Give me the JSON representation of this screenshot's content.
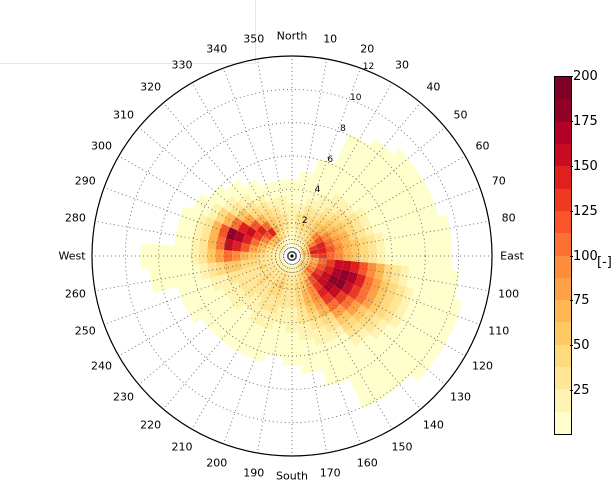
{
  "chart_data": {
    "type": "heatmap",
    "subtype": "polar-wind-rose",
    "title": "",
    "theta_direction": "clockwise",
    "theta_zero": "North",
    "angular_tick_labels": [
      "North",
      "10",
      "20",
      "30",
      "40",
      "50",
      "60",
      "70",
      "80",
      "East",
      "100",
      "110",
      "120",
      "130",
      "140",
      "150",
      "160",
      "170",
      "South",
      "190",
      "200",
      "210",
      "220",
      "230",
      "240",
      "250",
      "260",
      "West",
      "280",
      "290",
      "300",
      "310",
      "320",
      "330",
      "340",
      "350"
    ],
    "radial_ticks": [
      2,
      4,
      6,
      8,
      10,
      12
    ],
    "rlim": [
      0,
      12
    ],
    "grid": true,
    "colorbar": {
      "label": "[-]",
      "min": 0,
      "max": 200,
      "ticks": [
        25,
        50,
        75,
        100,
        125,
        150,
        175,
        200
      ],
      "colors": [
        "#ffffcc",
        "#fff3b1",
        "#ffe696",
        "#fed97e",
        "#fec965",
        "#feb652",
        "#fea146",
        "#fd8d3c",
        "#fc7133",
        "#f9542a",
        "#ef3a23",
        "#e01f1e",
        "#c90b22",
        "#b30026",
        "#910026",
        "#800026"
      ]
    },
    "sector_width_deg": 10,
    "bin_width": 0.5,
    "sectors": [
      {
        "dir": 0,
        "bins": [
          1,
          1,
          2,
          2,
          2,
          1,
          1,
          1,
          0
        ]
      },
      {
        "dir": 10,
        "bins": [
          2,
          2,
          3,
          3,
          2,
          1,
          1,
          1,
          1,
          0
        ]
      },
      {
        "dir": 20,
        "bins": [
          2,
          3,
          4,
          4,
          3,
          2,
          1,
          1,
          1,
          1,
          1,
          0
        ]
      },
      {
        "dir": 30,
        "bins": [
          2,
          3,
          4,
          4,
          3,
          2,
          2,
          1,
          1,
          1,
          1,
          1,
          1,
          1,
          1
        ]
      },
      {
        "dir": 40,
        "bins": [
          2,
          4,
          5,
          5,
          4,
          3,
          2,
          2,
          1,
          1,
          1,
          1,
          1,
          1,
          1,
          1
        ]
      },
      {
        "dir": 50,
        "bins": [
          3,
          6,
          8,
          6,
          5,
          4,
          3,
          2,
          1,
          1,
          1,
          1,
          1,
          1,
          1,
          1,
          1
        ]
      },
      {
        "dir": 60,
        "bins": [
          4,
          8,
          10,
          8,
          6,
          5,
          4,
          3,
          2,
          1,
          1,
          1,
          1,
          1,
          1,
          1,
          1
        ]
      },
      {
        "dir": 70,
        "bins": [
          5,
          11,
          12,
          9,
          7,
          6,
          4,
          3,
          2,
          1,
          1,
          1,
          1,
          1,
          1,
          1,
          1
        ]
      },
      {
        "dir": 80,
        "bins": [
          6,
          12,
          12,
          10,
          8,
          6,
          5,
          4,
          3,
          2,
          1,
          1,
          1,
          1,
          1,
          1,
          1,
          1
        ]
      },
      {
        "dir": 90,
        "bins": [
          5,
          10,
          11,
          9,
          8,
          6,
          5,
          4,
          3,
          2,
          1,
          1,
          1,
          1,
          1,
          1,
          1,
          1
        ]
      },
      {
        "dir": 100,
        "bins": [
          4,
          6,
          9,
          11,
          13,
          13,
          12,
          10,
          8,
          6,
          4,
          3,
          2,
          1,
          1,
          1,
          1,
          1,
          1
        ]
      },
      {
        "dir": 110,
        "bins": [
          4,
          7,
          10,
          12,
          14,
          15,
          14,
          12,
          9,
          7,
          5,
          4,
          3,
          2,
          1,
          1,
          1,
          1,
          1,
          1
        ]
      },
      {
        "dir": 120,
        "bins": [
          5,
          8,
          11,
          13,
          15,
          15,
          13,
          11,
          9,
          7,
          5,
          4,
          3,
          2,
          1,
          1,
          1,
          1,
          1,
          1
        ]
      },
      {
        "dir": 130,
        "bins": [
          5,
          9,
          12,
          13,
          14,
          13,
          11,
          9,
          7,
          5,
          4,
          3,
          2,
          1,
          1,
          1,
          1,
          1,
          1,
          1
        ]
      },
      {
        "dir": 140,
        "bins": [
          4,
          7,
          10,
          11,
          12,
          11,
          9,
          7,
          5,
          4,
          3,
          2,
          1,
          1,
          1,
          1,
          1,
          1,
          1
        ]
      },
      {
        "dir": 150,
        "bins": [
          3,
          5,
          7,
          8,
          8,
          7,
          6,
          4,
          3,
          2,
          1,
          1,
          1,
          1,
          1,
          1,
          1,
          1,
          1
        ]
      },
      {
        "dir": 160,
        "bins": [
          2,
          4,
          5,
          6,
          6,
          5,
          4,
          3,
          2,
          2,
          1,
          1,
          1,
          1,
          1
        ]
      },
      {
        "dir": 170,
        "bins": [
          2,
          3,
          4,
          4,
          4,
          3,
          3,
          2,
          2,
          1,
          1,
          1,
          1
        ]
      },
      {
        "dir": 180,
        "bins": [
          2,
          3,
          3,
          3,
          3,
          2,
          2,
          2,
          1,
          1,
          1,
          1
        ]
      },
      {
        "dir": 190,
        "bins": [
          2,
          3,
          3,
          3,
          3,
          2,
          2,
          1,
          1,
          1,
          1
        ]
      },
      {
        "dir": 200,
        "bins": [
          2,
          4,
          5,
          4,
          3,
          3,
          2,
          2,
          1,
          1,
          1,
          1
        ]
      },
      {
        "dir": 210,
        "bins": [
          2,
          3,
          4,
          4,
          3,
          3,
          2,
          2,
          1,
          1,
          1,
          1
        ]
      },
      {
        "dir": 220,
        "bins": [
          2,
          3,
          3,
          3,
          3,
          2,
          2,
          1,
          1,
          1,
          1,
          1
        ]
      },
      {
        "dir": 230,
        "bins": [
          2,
          3,
          4,
          4,
          3,
          3,
          2,
          2,
          1,
          1,
          1,
          1
        ]
      },
      {
        "dir": 240,
        "bins": [
          2,
          3,
          3,
          3,
          3,
          3,
          2,
          2,
          1,
          1,
          1,
          1,
          1
        ]
      },
      {
        "dir": 250,
        "bins": [
          2,
          3,
          4,
          3,
          3,
          3,
          3,
          2,
          2,
          1,
          1,
          1,
          1
        ]
      },
      {
        "dir": 260,
        "bins": [
          2,
          3,
          3,
          4,
          4,
          5,
          5,
          4,
          3,
          2,
          1,
          1,
          1,
          1,
          1,
          1
        ]
      },
      {
        "dir": 270,
        "bins": [
          2,
          3,
          4,
          5,
          6,
          8,
          9,
          7,
          5,
          3,
          2,
          1,
          1,
          1,
          1,
          1,
          1
        ]
      },
      {
        "dir": 280,
        "bins": [
          2,
          3,
          5,
          7,
          10,
          12,
          13,
          9,
          6,
          3,
          2,
          1,
          1
        ]
      },
      {
        "dir": 290,
        "bins": [
          2,
          4,
          6,
          9,
          12,
          14,
          15,
          10,
          6,
          3,
          2,
          1,
          1
        ]
      },
      {
        "dir": 300,
        "bins": [
          3,
          5,
          8,
          11,
          13,
          12,
          9,
          6,
          4,
          2,
          1,
          1
        ]
      },
      {
        "dir": 310,
        "bins": [
          3,
          6,
          10,
          12,
          10,
          7,
          5,
          3,
          2,
          1,
          1
        ]
      },
      {
        "dir": 320,
        "bins": [
          2,
          6,
          12,
          9,
          6,
          4,
          3,
          2,
          1,
          1
        ]
      },
      {
        "dir": 330,
        "bins": [
          2,
          4,
          6,
          5,
          4,
          3,
          2,
          1,
          1
        ]
      },
      {
        "dir": 340,
        "bins": [
          1,
          3,
          4,
          4,
          3,
          2,
          1,
          1
        ]
      },
      {
        "dir": 350,
        "bins": [
          1,
          2,
          3,
          3,
          2,
          2,
          1,
          1
        ]
      }
    ]
  }
}
